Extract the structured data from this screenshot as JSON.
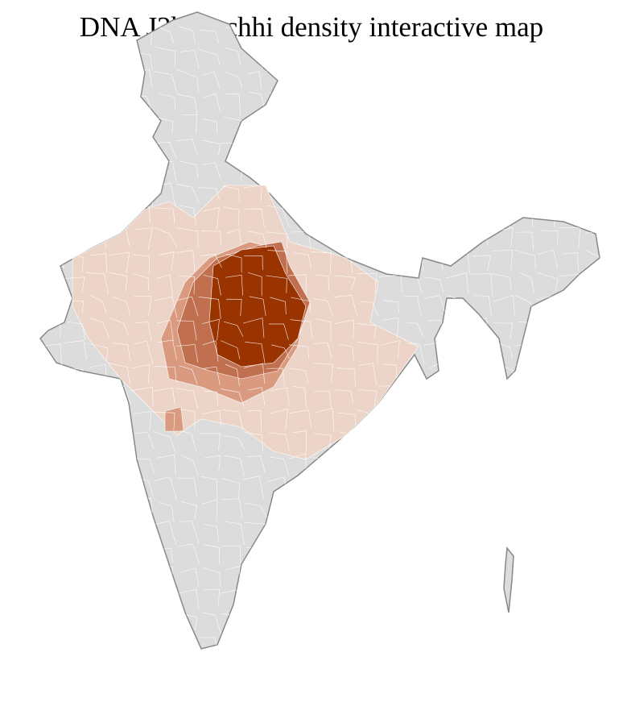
{
  "title": "DNA J2b Kachhi density interactive map",
  "colors": {
    "base": "#dcdcdc",
    "border": "#888888",
    "district_line": "#ffffff",
    "level_1": "#ecd4c8",
    "level_2": "#d99a80",
    "level_3": "#c0704f",
    "level_4": "#993300"
  }
}
